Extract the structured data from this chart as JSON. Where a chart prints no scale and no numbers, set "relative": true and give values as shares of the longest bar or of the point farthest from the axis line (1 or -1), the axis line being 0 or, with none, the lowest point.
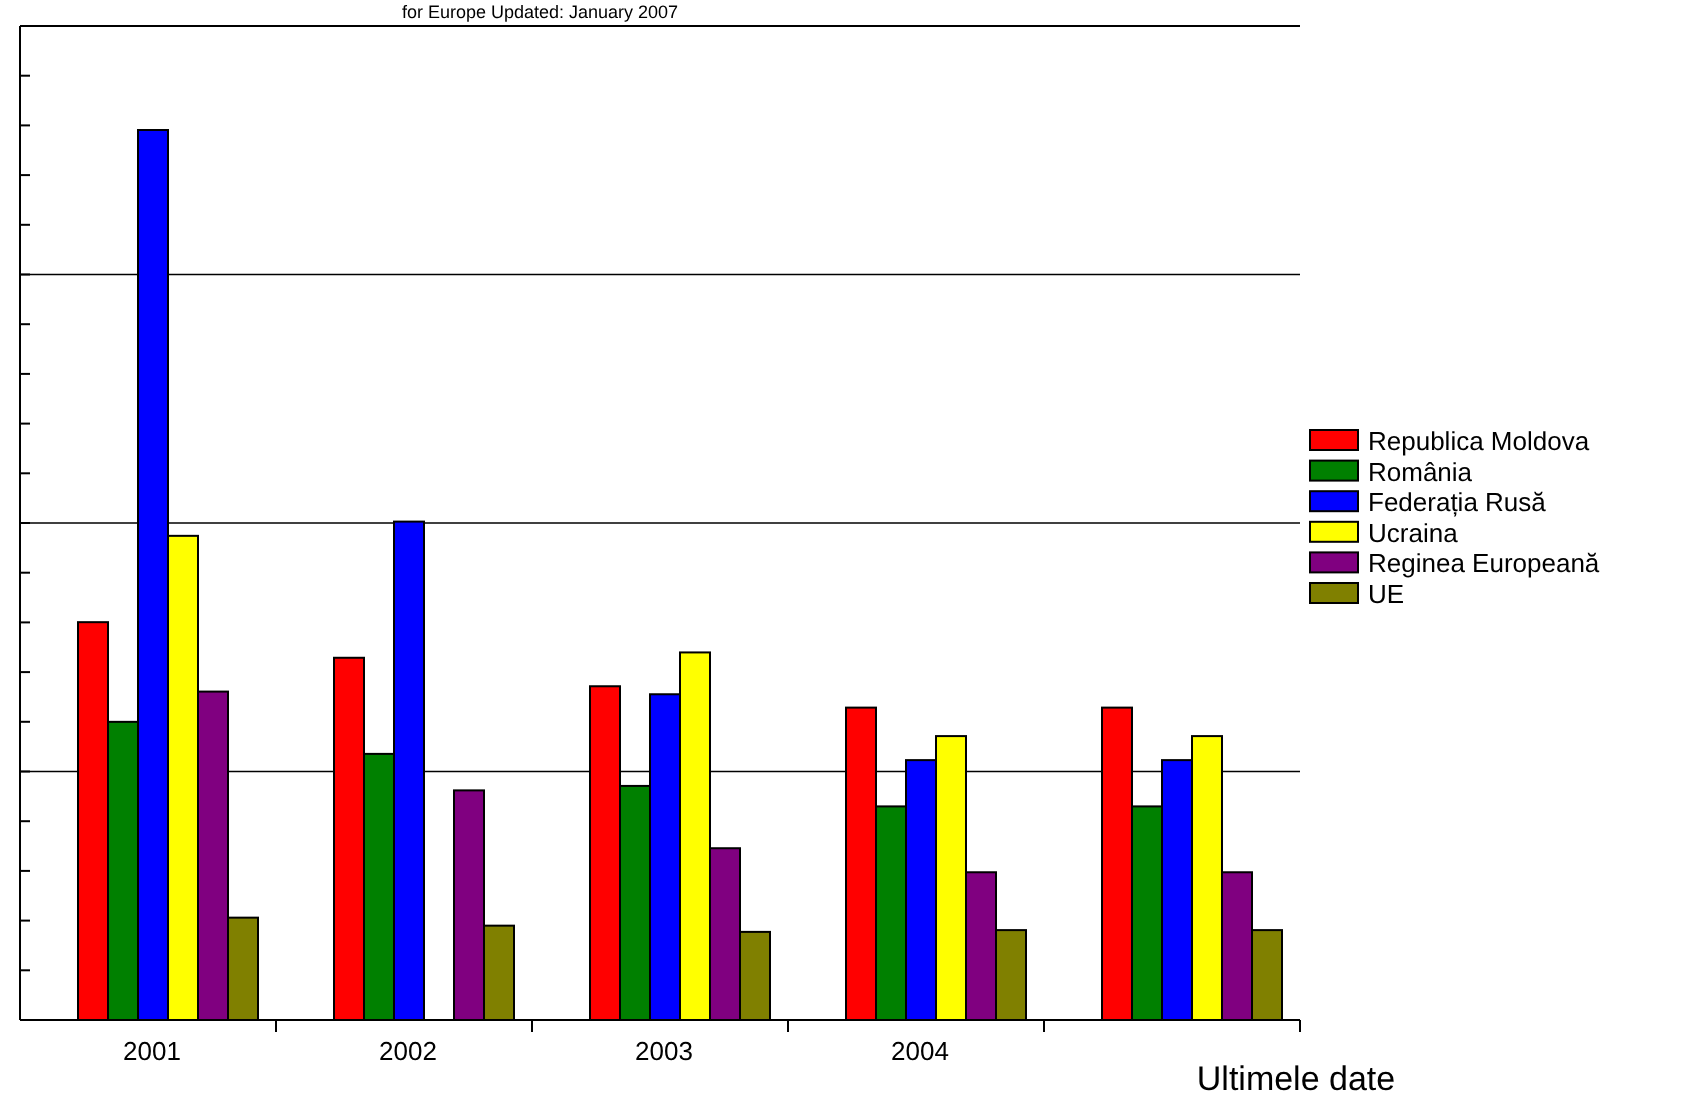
{
  "chart_data": {
    "type": "bar",
    "title": "for Europe Updated: January 2007",
    "xlabel": "Ultimele date",
    "categories": [
      "2001",
      "2002",
      "2003",
      "2004",
      null
    ],
    "relative": true,
    "grid": "y",
    "legend": "right",
    "series": [
      {
        "name": "Republica Moldova",
        "color": "#ff0000",
        "values": [
          0.447,
          0.407,
          0.375,
          0.351,
          0.351
        ]
      },
      {
        "name": "România",
        "color": "#008000",
        "values": [
          0.335,
          0.299,
          0.263,
          0.24,
          0.24
        ]
      },
      {
        "name": "Federația Rusă",
        "color": "#0000ff",
        "values": [
          1,
          0.56,
          0.366,
          0.292,
          0.292
        ]
      },
      {
        "name": "Ucraina",
        "color": "#ffff00",
        "values": [
          0.544,
          null,
          0.413,
          0.319,
          0.319
        ]
      },
      {
        "name": "Reginea Europeană",
        "color": "#800080",
        "values": [
          0.369,
          0.258,
          0.193,
          0.166,
          0.166
        ]
      },
      {
        "name": "UE",
        "color": "#808000",
        "values": [
          0.115,
          0.106,
          0.099,
          0.101,
          0.101
        ]
      }
    ]
  }
}
